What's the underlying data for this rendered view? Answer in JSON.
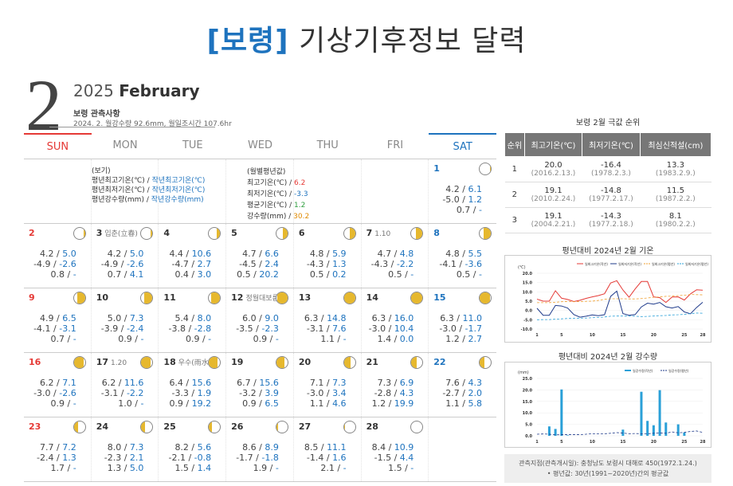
{
  "title": {
    "location": "[보령]",
    "rest": " 기상기후정보 달력"
  },
  "header": {
    "month": "2",
    "year": "2025",
    "month_name": "February",
    "station_label": "보령 관측사항",
    "summary": "2024. 2. 월강수량 92.6mm, 월일조시간 107.6hr"
  },
  "weekdays": [
    "SUN",
    "MON",
    "TUE",
    "WED",
    "THU",
    "FRI",
    "SAT"
  ],
  "legend": {
    "title": "(보기)",
    "l1a": "평년최고기온(℃) / ",
    "l1b": "작년최고기온(℃)",
    "l2a": "평년최저기온(℃) / ",
    "l2b": "작년최저기온(℃)",
    "l3a": "평년강수량(mm) / ",
    "l3b": "작년강수량(mm)"
  },
  "monthly_avg": {
    "title": "(월별평년값)",
    "max_label": "최고기온(℃) / ",
    "max_val": "6.2",
    "min_label": "최저기온(℃) / ",
    "min_val": "-3.3",
    "mean_label": "평균기온(℃) / ",
    "mean_val": "1.2",
    "rain_label": "강수량(mm) / ",
    "rain_val": "30.2"
  },
  "days": [
    {
      "d": "1",
      "term": "",
      "n": [
        "4.2 /",
        "-5.0 /",
        "0.7 /"
      ],
      "v": [
        "6.1",
        "1.2",
        "-"
      ],
      "moon": 0.05
    },
    {
      "d": "2",
      "term": "",
      "n": [
        "4.2 /",
        "-4.9 /",
        "0.8 /"
      ],
      "v": [
        "5.0",
        "-2.6",
        "-"
      ],
      "moon": 0.1
    },
    {
      "d": "3",
      "term": "입춘(立春)",
      "n": [
        "4.2 /",
        "-4.9 /",
        "0.7 /"
      ],
      "v": [
        "5.0",
        "-2.6",
        "4.1"
      ],
      "moon": 0.2
    },
    {
      "d": "4",
      "term": "",
      "n": [
        "4.4 /",
        "-4.7 /",
        "0.4 /"
      ],
      "v": [
        "10.6",
        "2.7",
        "3.0"
      ],
      "moon": 0.3
    },
    {
      "d": "5",
      "term": "",
      "n": [
        "4.7 /",
        "-4.5 /",
        "0.5 /"
      ],
      "v": [
        "6.6",
        "2.4",
        "20.2"
      ],
      "moon": 0.4
    },
    {
      "d": "6",
      "term": "",
      "n": [
        "4.8 /",
        "-4.3 /",
        "0.5 /"
      ],
      "v": [
        "5.9",
        "1.3",
        "0.2"
      ],
      "moon": 0.5
    },
    {
      "d": "7",
      "term": "1.10",
      "n": [
        "4.7 /",
        "-4.3 /",
        "0.5 /"
      ],
      "v": [
        "4.8",
        "-2.2",
        "-"
      ],
      "moon": 0.6
    },
    {
      "d": "8",
      "term": "",
      "n": [
        "4.8 /",
        "-4.1 /",
        "0.5 /"
      ],
      "v": [
        "5.5",
        "-3.6",
        "-"
      ],
      "moon": 0.65
    },
    {
      "d": "9",
      "term": "",
      "n": [
        "4.9 /",
        "-4.1 /",
        "0.7 /"
      ],
      "v": [
        "6.5",
        "-3.1",
        "-"
      ],
      "moon": 0.7
    },
    {
      "d": "10",
      "term": "",
      "n": [
        "5.0 /",
        "-3.9 /",
        "0.9 /"
      ],
      "v": [
        "7.3",
        "-2.4",
        "-"
      ],
      "moon": 0.75
    },
    {
      "d": "11",
      "term": "",
      "n": [
        "5.4 /",
        "-3.8 /",
        "0.9 /"
      ],
      "v": [
        "8.0",
        "-2.8",
        "-"
      ],
      "moon": 0.8
    },
    {
      "d": "12",
      "term": "정월대보름",
      "n": [
        "6.0 /",
        "-3.5 /",
        "0.9 /"
      ],
      "v": [
        "9.0",
        "-2.3",
        "-"
      ],
      "moon": 0.9
    },
    {
      "d": "13",
      "term": "",
      "n": [
        "6.3 /",
        "-3.1 /",
        "1.1 /"
      ],
      "v": [
        "14.8",
        "7.6",
        "-"
      ],
      "moon": 0.95
    },
    {
      "d": "14",
      "term": "",
      "n": [
        "6.3 /",
        "-3.0 /",
        "1.4 /"
      ],
      "v": [
        "16.0",
        "10.4",
        "0.0"
      ],
      "moon": 1
    },
    {
      "d": "15",
      "term": "",
      "n": [
        "6.3 /",
        "-3.0 /",
        "1.2 /"
      ],
      "v": [
        "11.0",
        "-1.7",
        "2.7"
      ],
      "moon": 0.95
    },
    {
      "d": "16",
      "term": "",
      "n": [
        "6.2 /",
        "-3.0 /",
        "0.9 /"
      ],
      "v": [
        "7.1",
        "-2.6",
        "-"
      ],
      "moon": 0.9
    },
    {
      "d": "17",
      "term": "1.20",
      "n": [
        "6.2 /",
        "-3.1 /",
        "1.0 /"
      ],
      "v": [
        "11.6",
        "-2.2",
        "-"
      ],
      "moon": 0.85
    },
    {
      "d": "18",
      "term": "우수(雨水)",
      "n": [
        "6.4 /",
        "-3.3 /",
        "0.9 /"
      ],
      "v": [
        "15.6",
        "1.9",
        "19.2"
      ],
      "moon": 0.75
    },
    {
      "d": "19",
      "term": "",
      "n": [
        "6.7 /",
        "-3.2 /",
        "0.9 /"
      ],
      "v": [
        "15.6",
        "3.9",
        "6.5"
      ],
      "moon": 0.7
    },
    {
      "d": "20",
      "term": "",
      "n": [
        "7.1 /",
        "-3.0 /",
        "1.1 /"
      ],
      "v": [
        "7.3",
        "3.4",
        "4.6"
      ],
      "moon": 0.6
    },
    {
      "d": "21",
      "term": "",
      "n": [
        "7.3 /",
        "-2.8 /",
        "1.2 /"
      ],
      "v": [
        "6.9",
        "4.3",
        "19.9"
      ],
      "moon": 0.5
    },
    {
      "d": "22",
      "term": "",
      "n": [
        "7.6 /",
        "-2.7 /",
        "1.1 /"
      ],
      "v": [
        "4.3",
        "2.0",
        "5.8"
      ],
      "moon": 0.45
    },
    {
      "d": "23",
      "term": "",
      "n": [
        "7.7 /",
        "-2.4 /",
        "1.7 /"
      ],
      "v": [
        "7.2",
        "1.3",
        "-"
      ],
      "moon": 0.4
    },
    {
      "d": "24",
      "term": "",
      "n": [
        "8.0 /",
        "-2.3 /",
        "1.3 /"
      ],
      "v": [
        "7.3",
        "2.1",
        "5.0"
      ],
      "moon": 0.3
    },
    {
      "d": "25",
      "term": "",
      "n": [
        "8.2 /",
        "-2.1 /",
        "1.5 /"
      ],
      "v": [
        "5.6",
        "-0.8",
        "1.4"
      ],
      "moon": 0.25
    },
    {
      "d": "26",
      "term": "",
      "n": [
        "8.6 /",
        "-1.7 /",
        "1.9 /"
      ],
      "v": [
        "8.9",
        "-1.8",
        "-"
      ],
      "moon": 0.15
    },
    {
      "d": "27",
      "term": "",
      "n": [
        "8.5 /",
        "-1.4 /",
        "2.1 /"
      ],
      "v": [
        "11.1",
        "1.6",
        "-"
      ],
      "moon": 0.1
    },
    {
      "d": "28",
      "term": "",
      "n": [
        "8.4 /",
        "-1.5 /",
        "1.5 /"
      ],
      "v": [
        "10.9",
        "4.4",
        "-"
      ],
      "moon": 0
    }
  ],
  "ranking": {
    "title": "보령 2월 극값 순위",
    "headers": [
      "순위",
      "최고기온(℃)",
      "최저기온(℃)",
      "최심신적설(cm)"
    ],
    "rows": [
      {
        "rank": "1",
        "max": "20.0",
        "max_d": "(2016.2.13.)",
        "min": "-16.4",
        "min_d": "(1978.2.3.)",
        "snow": "13.3",
        "snow_d": "(1983.2.9.)"
      },
      {
        "rank": "2",
        "max": "19.1",
        "max_d": "(2010.2.24.)",
        "min": "-14.8",
        "min_d": "(1977.2.17.)",
        "snow": "11.5",
        "snow_d": "(1987.2.2.)"
      },
      {
        "rank": "3",
        "max": "19.1",
        "max_d": "(2004.2.21.)",
        "min": "-14.3",
        "min_d": "(1977.2.18.)",
        "snow": "8.1",
        "snow_d": "(1980.2.2.)"
      }
    ]
  },
  "temp_chart": {
    "title": "평년대비 2024년 2월 기온",
    "unit": "(℃)",
    "legend": [
      "일최고기온(작년)",
      "일최저기온(작년)",
      "일최고기온(평년)",
      "일최저기온(평년)"
    ],
    "colors": {
      "max_obs": "#e53935",
      "min_obs": "#1e3a8a",
      "max_norm": "#f0a030",
      "min_norm": "#2aa0d8"
    },
    "chart_data": {
      "type": "line",
      "x": [
        1,
        2,
        3,
        4,
        5,
        6,
        7,
        8,
        9,
        10,
        11,
        12,
        13,
        14,
        15,
        16,
        17,
        18,
        19,
        20,
        21,
        22,
        23,
        24,
        25,
        26,
        27,
        28
      ],
      "xticks": [
        "1",
        "5",
        "10",
        "15",
        "20",
        "25",
        "28"
      ],
      "yticks": [
        "20.0",
        "15.0",
        "10.0",
        "5.0",
        "0.0",
        "-5.0",
        "-10.0"
      ],
      "ylim": [
        -10,
        20
      ],
      "series": [
        {
          "name": "일최고기온(작년)",
          "values": [
            6.1,
            5.0,
            5.0,
            10.6,
            6.6,
            5.9,
            4.8,
            5.5,
            6.5,
            7.3,
            8.0,
            9.0,
            14.8,
            16.0,
            11.0,
            7.1,
            11.6,
            15.6,
            15.6,
            7.3,
            6.9,
            4.3,
            7.2,
            7.3,
            5.6,
            8.9,
            11.1,
            10.9
          ]
        },
        {
          "name": "일최저기온(작년)",
          "values": [
            1.2,
            -2.6,
            -2.6,
            2.7,
            2.4,
            1.3,
            -2.2,
            -3.6,
            -3.1,
            -2.4,
            -2.8,
            -2.3,
            7.6,
            10.4,
            -1.7,
            -2.6,
            -2.2,
            1.9,
            3.9,
            3.4,
            4.3,
            2.0,
            1.3,
            2.1,
            -0.8,
            -1.8,
            1.6,
            4.4
          ]
        },
        {
          "name": "일최고기온(평년)",
          "values": [
            4.2,
            4.2,
            4.2,
            4.4,
            4.7,
            4.8,
            4.7,
            4.8,
            4.9,
            5.0,
            5.4,
            6.0,
            6.3,
            6.3,
            6.3,
            6.2,
            6.2,
            6.4,
            6.7,
            7.1,
            7.3,
            7.6,
            7.7,
            8.0,
            8.2,
            8.6,
            8.5,
            8.4
          ]
        },
        {
          "name": "일최저기온(평년)",
          "values": [
            -5.0,
            -4.9,
            -4.9,
            -4.7,
            -4.5,
            -4.3,
            -4.3,
            -4.1,
            -4.1,
            -3.9,
            -3.8,
            -3.5,
            -3.1,
            -3.0,
            -3.0,
            -3.0,
            -3.1,
            -3.3,
            -3.2,
            -3.0,
            -2.8,
            -2.7,
            -2.4,
            -2.3,
            -2.1,
            -1.7,
            -1.4,
            -1.5
          ]
        }
      ]
    }
  },
  "rain_chart": {
    "title": "평년대비 2024년 2월 강수량",
    "unit": "(mm)",
    "legend": [
      "일강수량(작년)",
      "일강수량(평년)"
    ],
    "colors": {
      "obs": "#2aa0d8",
      "norm": "#1e3a8a"
    },
    "chart_data": {
      "type": "bar",
      "x": [
        1,
        2,
        3,
        4,
        5,
        6,
        7,
        8,
        9,
        10,
        11,
        12,
        13,
        14,
        15,
        16,
        17,
        18,
        19,
        20,
        21,
        22,
        23,
        24,
        25,
        26,
        27,
        28
      ],
      "xticks": [
        "1",
        "5",
        "10",
        "15",
        "20",
        "25",
        "28"
      ],
      "yticks": [
        "25.0",
        "20.0",
        "15.0",
        "10.0",
        "5.0",
        "0.0"
      ],
      "ylim": [
        0,
        25
      ],
      "series": [
        {
          "name": "일강수량(작년)",
          "values": [
            0,
            0,
            4.1,
            3.0,
            20.2,
            0.2,
            0,
            0,
            0,
            0,
            0,
            0,
            0,
            0.0,
            2.7,
            0,
            0,
            19.2,
            6.5,
            4.6,
            19.9,
            5.8,
            0,
            5.0,
            1.4,
            0,
            0,
            0
          ]
        },
        {
          "name": "일강수량(평년)",
          "values": [
            0.7,
            0.8,
            0.7,
            0.4,
            0.5,
            0.5,
            0.5,
            0.5,
            0.7,
            0.9,
            0.9,
            0.9,
            1.1,
            1.4,
            1.2,
            0.9,
            1.0,
            0.9,
            0.9,
            1.1,
            1.2,
            1.1,
            1.7,
            1.3,
            1.5,
            1.9,
            2.1,
            1.5
          ]
        }
      ]
    }
  },
  "footer": {
    "line1": "관측지점(관측개시일): 충청남도 보령시 대해로 450(1972.1.24.)",
    "line2": "• 평년값: 30년(1991~2020년)간의 평균값"
  }
}
